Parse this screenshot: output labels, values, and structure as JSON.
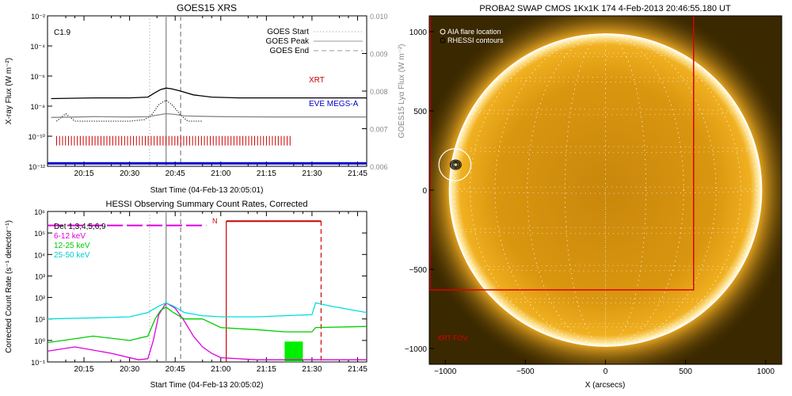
{
  "chart_data": [
    {
      "id": "goes",
      "type": "line",
      "title": "GOES15 XRS",
      "xlabel": "Start Time (04-Feb-13 20:05:01)",
      "ylabel": "X-ray Flux (W m$^{-2}$)",
      "ylabel_display": "X-ray Flux (W m⁻²)",
      "y2label": "GOES15 Lyα Flux (W m⁻²)",
      "flare_class": "C1.9",
      "xlim": [
        20.05,
        21.8
      ],
      "ylim_log": [
        -12,
        -2
      ],
      "y2lim": [
        0.006,
        0.01
      ],
      "xticks": [
        "20:15",
        "20:30",
        "20:45",
        "21:00",
        "21:15",
        "21:30",
        "21:45"
      ],
      "xtick_values": [
        20.25,
        20.5,
        20.75,
        21.0,
        21.25,
        21.5,
        21.75
      ],
      "yticks": [
        "10⁻¹²",
        "10⁻¹⁰",
        "10⁻⁸",
        "10⁻⁶",
        "10⁻⁴",
        "10⁻²"
      ],
      "ytick_exponents": [
        -12,
        -10,
        -8,
        -6,
        -4,
        -2
      ],
      "y2ticks": [
        "0.006",
        "0.007",
        "0.008",
        "0.009",
        "0.010"
      ],
      "y2tick_values": [
        0.006,
        0.007,
        0.008,
        0.009,
        0.01
      ],
      "legend": [
        {
          "label": "GOES Start",
          "style": "dotted",
          "color": "#999999"
        },
        {
          "label": "GOES Peak",
          "style": "solid",
          "color": "#999999"
        },
        {
          "label": "GOES End",
          "style": "dashed",
          "color": "#999999"
        }
      ],
      "event_lines": {
        "start": 20.61,
        "peak": 20.7,
        "end": 20.78
      },
      "labels": {
        "xrt": "XRT",
        "eve": "EVE MEGS-A"
      },
      "colors": {
        "xrt": "#cc0000",
        "eve": "#0000cc"
      },
      "series": [
        {
          "name": "long",
          "color": "#000000",
          "x": [
            20.07,
            20.3,
            20.5,
            20.6,
            20.64,
            20.67,
            20.7,
            20.73,
            20.78,
            20.85,
            20.95,
            21.1,
            21.3,
            21.5,
            21.8
          ],
          "y_log": [
            -7.5,
            -7.45,
            -7.45,
            -7.4,
            -7.1,
            -6.9,
            -6.8,
            -6.85,
            -7.0,
            -7.25,
            -7.4,
            -7.45,
            -7.45,
            -7.45,
            -7.45
          ]
        },
        {
          "name": "short",
          "color": "#000000",
          "x": [
            20.1,
            20.15,
            20.2,
            20.3,
            20.4,
            20.5,
            20.58,
            20.62,
            20.66,
            20.7,
            20.74,
            20.78,
            20.82,
            20.86,
            20.9
          ],
          "y_log": [
            -9.0,
            -8.5,
            -9.0,
            -9.0,
            -9.0,
            -9.0,
            -8.9,
            -8.6,
            -7.9,
            -7.6,
            -8.0,
            -8.6,
            -9.0,
            -9.0,
            -9.0
          ]
        },
        {
          "name": "lya",
          "color": "#888888",
          "x": [
            20.07,
            20.3,
            20.5,
            20.6,
            20.65,
            20.7,
            20.75,
            20.8,
            21.0,
            21.3,
            21.8
          ],
          "y_log": [
            -8.75,
            -8.7,
            -8.72,
            -8.7,
            -8.6,
            -8.5,
            -8.55,
            -8.65,
            -8.7,
            -8.72,
            -8.72
          ]
        },
        {
          "name": "eve",
          "color": "#0000cc",
          "x": [
            20.05,
            21.8
          ],
          "y_log": [
            -11.8,
            -11.8
          ]
        }
      ],
      "xrt_ticks": {
        "x_start": 20.1,
        "x_end": 21.38,
        "count": 80,
        "y_log": -10.3,
        "color": "#cc0000"
      }
    },
    {
      "id": "hessi",
      "type": "line",
      "title": "HESSI Observing Summary Count Rates, Corrected",
      "xlabel": "Start Time (04-Feb-13 20:05:02)",
      "ylabel": "Corrected Count Rate (s⁻¹ detector⁻¹)",
      "xlim": [
        20.05,
        21.8
      ],
      "ylim_log": [
        -1,
        6
      ],
      "xticks": [
        "20:15",
        "20:30",
        "20:45",
        "21:00",
        "21:15",
        "21:30",
        "21:45"
      ],
      "xtick_values": [
        20.25,
        20.5,
        20.75,
        21.0,
        21.25,
        21.5,
        21.75
      ],
      "yticks": [
        "10⁻¹",
        "10⁰",
        "10¹",
        "10²",
        "10³",
        "10⁴",
        "10⁵",
        "10⁶"
      ],
      "ytick_exponents": [
        -1,
        0,
        1,
        2,
        3,
        4,
        5,
        6
      ],
      "legend": [
        {
          "label": "Det 1,3,4,5,6,9",
          "color": "#000000"
        },
        {
          "label": "6-12 keV",
          "color": "#dd00dd"
        },
        {
          "label": "12-25 keV",
          "color": "#00cc00"
        },
        {
          "label": "25-50 keV",
          "color": "#00dddd"
        }
      ],
      "event_lines": {
        "start": 20.61,
        "peak": 20.7,
        "end": 20.78
      },
      "night_label": "N",
      "night": {
        "x_start": 21.03,
        "x_end": 21.55,
        "y_log": 5.55,
        "color": "#cc0000"
      },
      "atten_bar": {
        "x": [
          20.05,
          20.92
        ],
        "y_log": 5.35,
        "color": "#dd00dd"
      },
      "atten_block": {
        "x": [
          21.35,
          21.45
        ],
        "y_log": [
          -1,
          -0.05
        ],
        "color": "#00ee00"
      },
      "series": [
        {
          "name": "6-12 keV",
          "color": "#dd00dd",
          "x": [
            20.05,
            20.2,
            20.4,
            20.55,
            20.6,
            20.63,
            20.66,
            20.7,
            20.75,
            20.8,
            20.85,
            20.9,
            20.95,
            21.0,
            21.2,
            21.5,
            21.8
          ],
          "y_log": [
            -0.5,
            -0.3,
            -0.6,
            -0.9,
            -0.85,
            0.0,
            1.2,
            1.75,
            1.5,
            0.9,
            0.2,
            -0.3,
            -0.6,
            -0.8,
            -0.9,
            -0.9,
            -0.9
          ]
        },
        {
          "name": "12-25 keV",
          "color": "#00cc00",
          "x": [
            20.05,
            20.3,
            20.5,
            20.6,
            20.64,
            20.67,
            20.7,
            20.74,
            20.8,
            20.9,
            21.0,
            21.2,
            21.35,
            21.5,
            21.52,
            21.8
          ],
          "y_log": [
            -0.1,
            0.2,
            0.0,
            0.2,
            1.0,
            1.4,
            1.55,
            1.3,
            1.0,
            1.0,
            0.6,
            0.5,
            0.4,
            0.4,
            0.6,
            0.65
          ]
        },
        {
          "name": "25-50 keV",
          "color": "#00dddd",
          "x": [
            20.05,
            20.3,
            20.5,
            20.6,
            20.66,
            20.7,
            20.74,
            20.8,
            20.9,
            21.0,
            21.2,
            21.5,
            21.52,
            21.6,
            21.8
          ],
          "y_log": [
            1.0,
            1.05,
            1.1,
            1.3,
            1.6,
            1.75,
            1.6,
            1.3,
            1.15,
            1.1,
            1.1,
            1.2,
            1.75,
            1.6,
            1.3
          ]
        }
      ]
    },
    {
      "id": "swap",
      "type": "heatmap",
      "title": "PROBA2 SWAP CMOS 1Kx1K 174   4-Feb-2013 20:46:55.180 UT",
      "xlabel": "X (arcsecs)",
      "xlim": [
        -1100,
        1100
      ],
      "ylim": [
        -1100,
        1100
      ],
      "xticks": [
        "−1000",
        "−500",
        "0",
        "500",
        "1000"
      ],
      "xtick_values": [
        -1000,
        -500,
        0,
        500,
        1000
      ],
      "yticks": [
        "−1000",
        "−500",
        "0",
        "500",
        "1000"
      ],
      "ytick_values": [
        -1000,
        -500,
        0,
        500,
        1000
      ],
      "legend": [
        {
          "label": "AIA flare location",
          "symbol": "circle"
        },
        {
          "label": "RHESSI contours",
          "symbol": "circle"
        }
      ],
      "fov_label": "XRT FOV",
      "colors": {
        "fov": "#dd0000",
        "disk": "#e8a010",
        "limb": "#fff0b0",
        "background": "#3a2a00"
      },
      "sun_radius": 975,
      "flare_center": [
        -940,
        160
      ],
      "flare_circle_radius": 100,
      "xrt_fov": {
        "x": [
          -1100,
          550
        ],
        "y": [
          -630,
          1100
        ]
      }
    }
  ]
}
